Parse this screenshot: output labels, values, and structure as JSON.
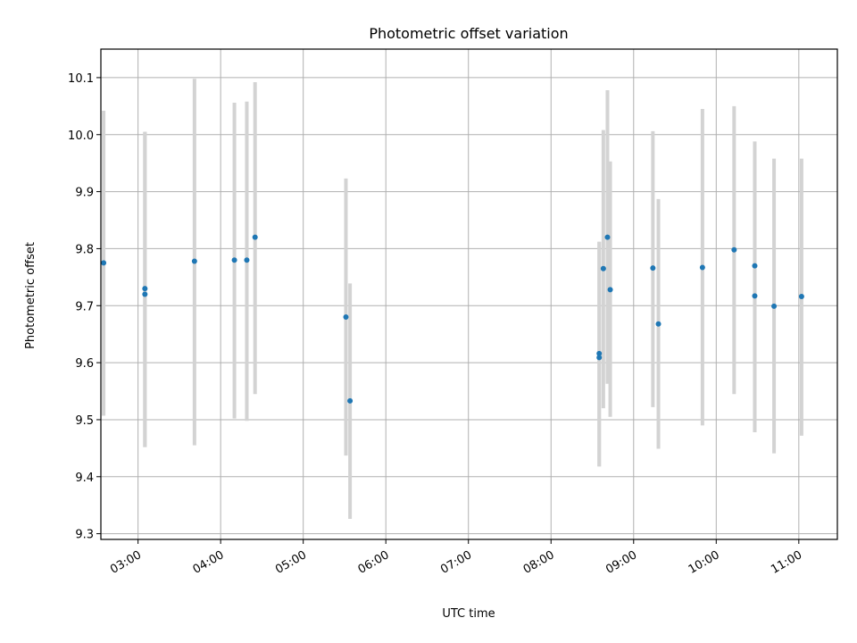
{
  "chart_data": {
    "type": "scatter",
    "title": "Photometric offset variation",
    "xlabel": "UTC time",
    "ylabel": "Photometric offset",
    "xlim": [
      "02:33",
      "11:28"
    ],
    "ylim": [
      9.29,
      10.15
    ],
    "x_ticks": [
      "03:00",
      "04:00",
      "05:00",
      "06:00",
      "07:00",
      "08:00",
      "09:00",
      "10:00",
      "11:00"
    ],
    "y_ticks": [
      "9.3",
      "9.4",
      "9.5",
      "9.6",
      "9.7",
      "9.8",
      "9.9",
      "10.0",
      "10.1"
    ],
    "grid": true,
    "colors": {
      "points": "#1f77b4",
      "error_bars": "#d3d3d3"
    },
    "points": [
      {
        "time": "02:35",
        "y": 9.775,
        "ylow": 9.507,
        "yhigh": 10.042
      },
      {
        "time": "03:05",
        "y": 9.73,
        "ylow": 9.452,
        "yhigh": 10.005
      },
      {
        "time": "03:05",
        "y": 9.72,
        "ylow": 9.452,
        "yhigh": 10.005
      },
      {
        "time": "03:41",
        "y": 9.778,
        "ylow": 9.455,
        "yhigh": 10.098
      },
      {
        "time": "04:10",
        "y": 9.78,
        "ylow": 9.502,
        "yhigh": 10.056
      },
      {
        "time": "04:19",
        "y": 9.78,
        "ylow": 9.498,
        "yhigh": 10.058
      },
      {
        "time": "04:25",
        "y": 9.82,
        "ylow": 9.545,
        "yhigh": 10.092
      },
      {
        "time": "05:31",
        "y": 9.68,
        "ylow": 9.437,
        "yhigh": 9.923
      },
      {
        "time": "05:34",
        "y": 9.533,
        "ylow": 9.326,
        "yhigh": 9.739
      },
      {
        "time": "08:35",
        "y": 9.616,
        "ylow": 9.418,
        "yhigh": 9.812
      },
      {
        "time": "08:35",
        "y": 9.609,
        "ylow": 9.418,
        "yhigh": 9.812
      },
      {
        "time": "08:38",
        "y": 9.765,
        "ylow": 9.52,
        "yhigh": 10.008
      },
      {
        "time": "08:41",
        "y": 9.82,
        "ylow": 9.563,
        "yhigh": 10.078
      },
      {
        "time": "08:43",
        "y": 9.728,
        "ylow": 9.505,
        "yhigh": 9.953
      },
      {
        "time": "09:14",
        "y": 9.766,
        "ylow": 9.522,
        "yhigh": 10.006
      },
      {
        "time": "09:18",
        "y": 9.668,
        "ylow": 9.449,
        "yhigh": 9.887
      },
      {
        "time": "09:50",
        "y": 9.767,
        "ylow": 9.49,
        "yhigh": 10.045
      },
      {
        "time": "10:13",
        "y": 9.798,
        "ylow": 9.545,
        "yhigh": 10.05
      },
      {
        "time": "10:28",
        "y": 9.77,
        "ylow": 9.478,
        "yhigh": 9.988
      },
      {
        "time": "10:28",
        "y": 9.717,
        "ylow": 9.478,
        "yhigh": 9.956
      },
      {
        "time": "10:42",
        "y": 9.699,
        "ylow": 9.441,
        "yhigh": 9.958
      },
      {
        "time": "11:02",
        "y": 9.716,
        "ylow": 9.472,
        "yhigh": 9.958
      }
    ]
  }
}
